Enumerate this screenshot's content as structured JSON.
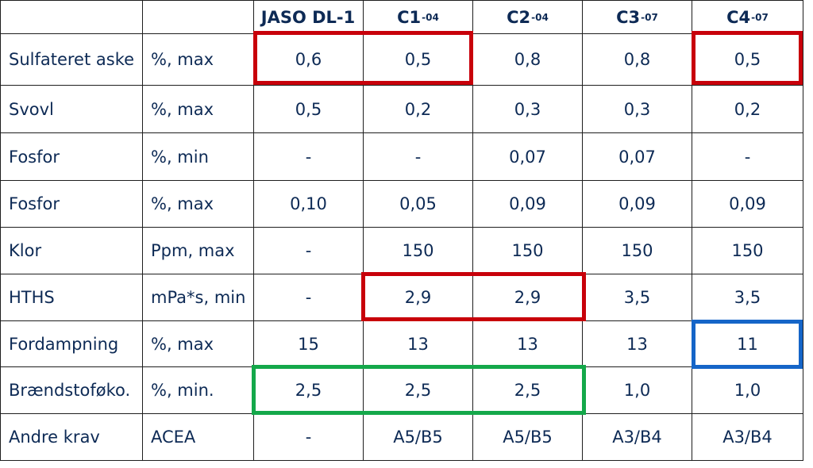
{
  "header": {
    "blank_1": "",
    "blank_2": "",
    "columns": [
      {
        "name": "JASO DL-1",
        "suffix": ""
      },
      {
        "name": "C1",
        "suffix": "-04"
      },
      {
        "name": "C2",
        "suffix": "-04"
      },
      {
        "name": "C3",
        "suffix": "-07"
      },
      {
        "name": "C4",
        "suffix": "-07"
      }
    ]
  },
  "rows": [
    {
      "label": "Sulfateret aske",
      "unit": "%, max",
      "values": [
        "0,6",
        "0,5",
        "0,8",
        "0,8",
        "0,5"
      ]
    },
    {
      "label": "Svovl",
      "unit": "%, max",
      "values": [
        "0,5",
        "0,2",
        "0,3",
        "0,3",
        "0,2"
      ]
    },
    {
      "label": "Fosfor",
      "unit": "%, min",
      "values": [
        "-",
        "-",
        "0,07",
        "0,07",
        "-"
      ]
    },
    {
      "label": "Fosfor",
      "unit": "%, max",
      "values": [
        "0,10",
        "0,05",
        "0,09",
        "0,09",
        "0,09"
      ]
    },
    {
      "label": "Klor",
      "unit": "Ppm, max",
      "values": [
        "-",
        "150",
        "150",
        "150",
        "150"
      ]
    },
    {
      "label": "HTHS",
      "unit": "mPa*s, min",
      "values": [
        "-",
        "2,9",
        "2,9",
        "3,5",
        "3,5"
      ]
    },
    {
      "label": "Fordampning",
      "unit": "%, max",
      "values": [
        "15",
        "13",
        "13",
        "13",
        "11"
      ]
    },
    {
      "label": "Brændstoføko.",
      "unit": "%, min.",
      "values": [
        "2,5",
        "2,5",
        "2,5",
        "1,0",
        "1,0"
      ]
    },
    {
      "label": "Andre krav",
      "unit": "ACEA",
      "values": [
        "-",
        "A5/B5",
        "A5/B5",
        "A3/B4",
        "A3/B4"
      ]
    }
  ],
  "colors": {
    "text": "#0d2a55",
    "grid": "#1e1e1e",
    "highlight_red": "#c8000a",
    "highlight_blue": "#1565c8",
    "highlight_green": "#14a84a"
  }
}
